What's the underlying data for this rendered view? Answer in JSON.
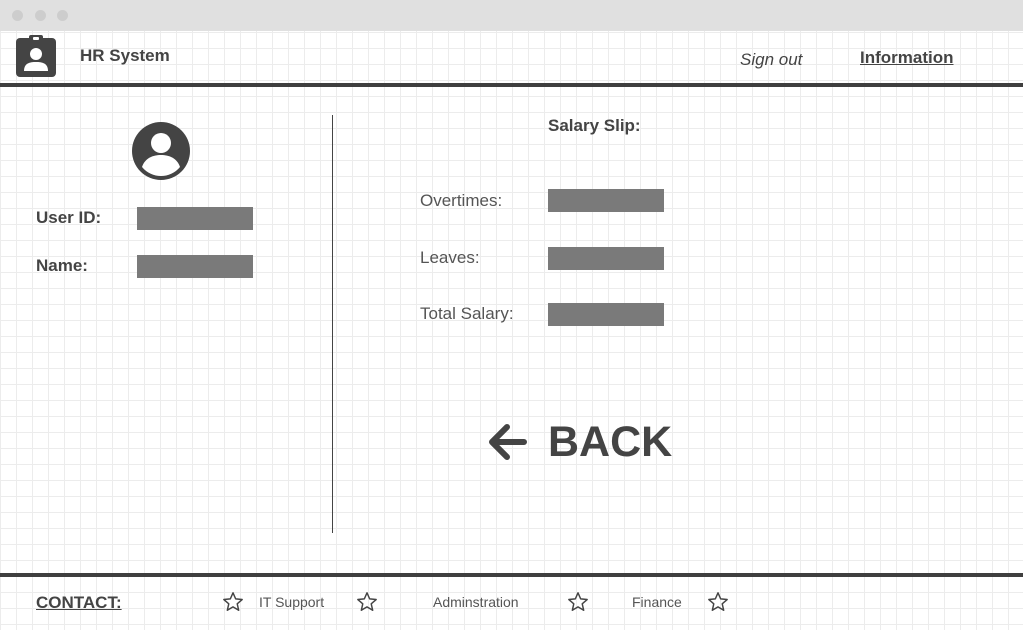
{
  "header": {
    "app_title": "HR System",
    "sign_out": "Sign out",
    "information": "Information"
  },
  "profile": {
    "user_id_label": "User ID:",
    "name_label": "Name:"
  },
  "salary_slip": {
    "title": "Salary Slip:",
    "overtimes_label": "Overtimes:",
    "leaves_label": "Leaves:",
    "total_salary_label": "Total Salary:"
  },
  "back_label": "BACK",
  "footer": {
    "contact": "CONTACT:",
    "links": [
      "IT Support",
      "Adminstration",
      "Finance"
    ]
  },
  "colors": {
    "text": "#444444",
    "field_fill": "#7a7a7a",
    "rule": "#3f3f3f",
    "titlebar": "#e0e0e0"
  },
  "icons": [
    "clipboard-user-icon",
    "user-avatar-icon",
    "arrow-left-icon",
    "star-icon"
  ]
}
